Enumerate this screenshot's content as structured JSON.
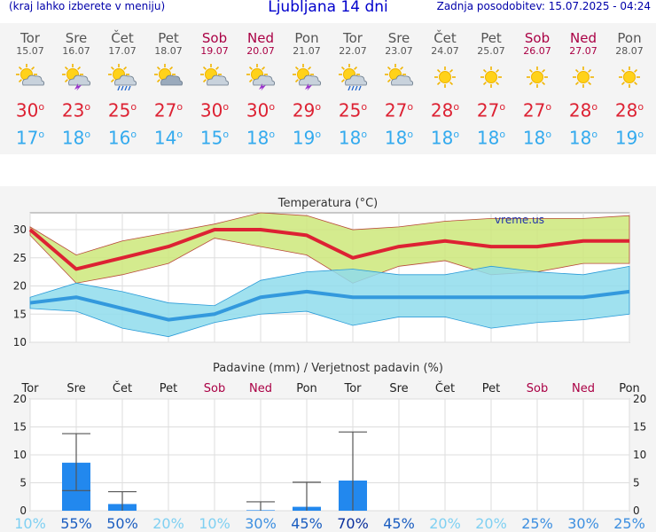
{
  "header": {
    "left_note": "(kraj lahko izberete v meniju)",
    "title": "Ljubljana 14 dni",
    "updated": "Zadnja posodobitev: 15.07.2025 - 04:24"
  },
  "colors": {
    "max_temp": "#dd2233",
    "min_temp": "#33aaee",
    "weekend": "#aa0044",
    "rain_bar": "#2288ee",
    "max_band": "#cce87a",
    "min_band": "#8fdcec"
  },
  "forecast": {
    "days": [
      {
        "day": "Tor",
        "date": "15.07",
        "icon": "partly-cloudy-icon",
        "max": "30",
        "min": "17",
        "weekend": false
      },
      {
        "day": "Sre",
        "date": "16.07",
        "icon": "storm-icon",
        "max": "23",
        "min": "18",
        "weekend": false
      },
      {
        "day": "Čet",
        "date": "17.07",
        "icon": "sun-rain-icon",
        "max": "25",
        "min": "16",
        "weekend": false
      },
      {
        "day": "Pet",
        "date": "18.07",
        "icon": "cloudy-sun-icon",
        "max": "27",
        "min": "14",
        "weekend": false
      },
      {
        "day": "Sob",
        "date": "19.07",
        "icon": "partly-cloudy-icon",
        "max": "30",
        "min": "15",
        "weekend": true
      },
      {
        "day": "Ned",
        "date": "20.07",
        "icon": "storm-icon",
        "max": "30",
        "min": "18",
        "weekend": true
      },
      {
        "day": "Pon",
        "date": "21.07",
        "icon": "storm-icon",
        "max": "29",
        "min": "19",
        "weekend": false
      },
      {
        "day": "Tor",
        "date": "22.07",
        "icon": "sun-rain-icon",
        "max": "25",
        "min": "18",
        "weekend": false
      },
      {
        "day": "Sre",
        "date": "23.07",
        "icon": "partly-cloudy-icon",
        "max": "27",
        "min": "18",
        "weekend": false
      },
      {
        "day": "Čet",
        "date": "24.07",
        "icon": "sun-icon",
        "max": "28",
        "min": "18",
        "weekend": false
      },
      {
        "day": "Pet",
        "date": "25.07",
        "icon": "sun-icon",
        "max": "27",
        "min": "18",
        "weekend": false
      },
      {
        "day": "Sob",
        "date": "26.07",
        "icon": "sun-icon",
        "max": "27",
        "min": "18",
        "weekend": true
      },
      {
        "day": "Ned",
        "date": "27.07",
        "icon": "sun-icon",
        "max": "28",
        "min": "18",
        "weekend": true
      },
      {
        "day": "Pon",
        "date": "28.07",
        "icon": "sun-icon",
        "max": "28",
        "min": "19",
        "weekend": false
      }
    ],
    "unit": "o"
  },
  "chart_data": [
    {
      "type": "line",
      "title": "Temperatura (°C)",
      "source": "vreme.us",
      "x": [
        "15.07",
        "16.07",
        "17.07",
        "18.07",
        "19.07",
        "20.07",
        "21.07",
        "22.07",
        "23.07",
        "24.07",
        "25.07",
        "26.07",
        "27.07",
        "28.07"
      ],
      "ylim": [
        10,
        33
      ],
      "yticks": [
        10,
        15,
        20,
        25,
        30
      ],
      "grid": true,
      "series": [
        {
          "values": [
            30,
            23,
            25,
            27,
            30,
            30,
            29,
            25,
            27,
            28,
            27,
            27,
            28,
            28
          ],
          "lower": [
            29,
            20.5,
            22,
            24,
            28.5,
            27,
            25.5,
            20.5,
            23.5,
            24.5,
            22,
            22.5,
            24,
            24
          ],
          "upper": [
            30.5,
            25.5,
            28,
            29.5,
            31,
            33,
            32.5,
            30,
            30.5,
            31.5,
            32,
            32,
            32,
            32.5
          ]
        },
        {
          "values": [
            17,
            18,
            16,
            14,
            15,
            18,
            19,
            18,
            18,
            18,
            18,
            18,
            18,
            19
          ],
          "lower": [
            16,
            15.5,
            12.5,
            11,
            13.5,
            15,
            15.5,
            13,
            14.5,
            14.5,
            12.5,
            13.5,
            14,
            15
          ],
          "upper": [
            18,
            20.5,
            19,
            17,
            16.5,
            21,
            22.5,
            23,
            22,
            22,
            23.5,
            22.5,
            22,
            23.5
          ]
        }
      ]
    },
    {
      "type": "bar",
      "title": "Padavine (mm) / Verjetnost padavin (%)",
      "categories": [
        "Tor",
        "Sre",
        "Čet",
        "Pet",
        "Sob",
        "Ned",
        "Pon",
        "Tor",
        "Sre",
        "Čet",
        "Pet",
        "Sob",
        "Ned",
        "Pon"
      ],
      "weekend": [
        false,
        false,
        false,
        false,
        true,
        true,
        false,
        false,
        false,
        false,
        false,
        true,
        true,
        false
      ],
      "ylim": [
        0,
        20
      ],
      "yticks": [
        0,
        5,
        10,
        15,
        20
      ],
      "values": [
        0,
        8.6,
        1.2,
        0,
        0,
        0.1,
        0.7,
        5.4,
        0,
        0,
        0,
        0,
        0,
        0
      ],
      "error_low": [
        0,
        3.6,
        0,
        0,
        0,
        0,
        0,
        0,
        0,
        0,
        0,
        0,
        0,
        0
      ],
      "error_high": [
        0,
        13.8,
        3.4,
        0,
        0,
        1.6,
        5.1,
        14.1,
        0,
        0,
        0,
        0,
        0,
        0
      ],
      "probability": [
        "10%",
        "55%",
        "50%",
        "20%",
        "10%",
        "30%",
        "45%",
        "70%",
        "45%",
        "20%",
        "20%",
        "25%",
        "30%",
        "25%"
      ]
    }
  ]
}
